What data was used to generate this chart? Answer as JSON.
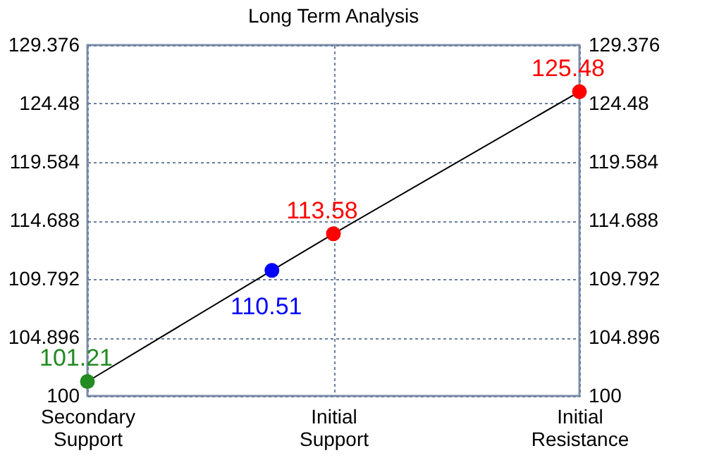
{
  "chart_data": {
    "type": "line",
    "title": "Long Term Analysis",
    "categories": [
      "Secondary\nSupport",
      null,
      null,
      null,
      "Initial\nSupport",
      null,
      null,
      null,
      "Initial\nResistance"
    ],
    "ylim": [
      100,
      129.376
    ],
    "yticks": [
      100,
      104.896,
      109.792,
      114.688,
      119.584,
      124.48,
      129.376
    ],
    "y2lim": [
      100,
      129.376
    ],
    "y2ticks": [
      100,
      104.896,
      109.792,
      114.688,
      119.584,
      124.48,
      129.376
    ],
    "series": [
      {
        "color": "#000000",
        "values": [
          101.21,
          null,
          null,
          110.51,
          113.58,
          null,
          null,
          null,
          125.48
        ],
        "colors": [
          "#228b22",
          null,
          null,
          "#0000ff",
          "#ff0000",
          null,
          null,
          null,
          "#ff0000"
        ]
      }
    ],
    "data_labels": true,
    "marker": "circle",
    "grid": true,
    "line_style": "solid"
  }
}
